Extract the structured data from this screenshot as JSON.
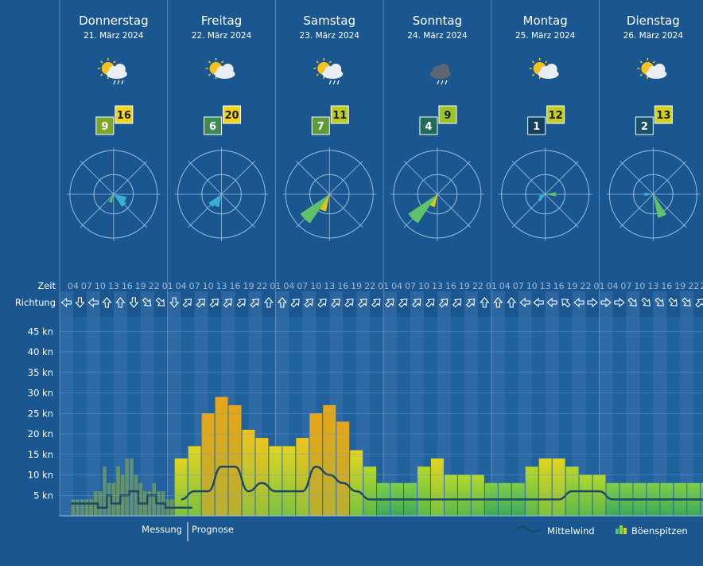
{
  "days": [
    {
      "name": "Donnerstag",
      "date": "21. März 2024",
      "weather_icon": "sun-cloud-rain-icon",
      "mean_wind": 9,
      "gust": 16,
      "mean_badge_color": "#7aa62c",
      "gust_badge_color": "#f4d51e"
    },
    {
      "name": "Freitag",
      "date": "22. März 2024",
      "weather_icon": "sun-cloud-icon",
      "mean_wind": 6,
      "gust": 20,
      "mean_badge_color": "#3d8a52",
      "gust_badge_color": "#f4d51e"
    },
    {
      "name": "Samstag",
      "date": "23. März 2024",
      "weather_icon": "sun-cloud-rain-icon",
      "mean_wind": 7,
      "gust": 11,
      "mean_badge_color": "#5d9a3c",
      "gust_badge_color": "#bccc20"
    },
    {
      "name": "Sonntag",
      "date": "24. März 2024",
      "weather_icon": "cloud-rain-icon",
      "mean_wind": 4,
      "gust": 9,
      "mean_badge_color": "#226b5a",
      "gust_badge_color": "#9cc42a"
    },
    {
      "name": "Montag",
      "date": "25. März 2024",
      "weather_icon": "sun-cloud-icon",
      "mean_wind": 1,
      "gust": 12,
      "mean_badge_color": "#13405f",
      "gust_badge_color": "#c4ce20"
    },
    {
      "name": "Dienstag",
      "date": "26. März 2024",
      "weather_icon": "sun-cloud-icon",
      "mean_wind": 2,
      "gust": 13,
      "mean_badge_color": "#1b5169",
      "gust_badge_color": "#d2d21e"
    }
  ],
  "row_labels": {
    "time": "Zeit",
    "direction": "Richtung"
  },
  "hour_ticks": [
    "01",
    "04",
    "07",
    "10",
    "13",
    "16",
    "19",
    "22"
  ],
  "y_axis": {
    "unit": "kn",
    "ticks": [
      5,
      10,
      15,
      20,
      25,
      30,
      35,
      40,
      45
    ]
  },
  "footer": {
    "measurement": "Messung",
    "forecast": "Prognose"
  },
  "legend": {
    "mean": "Mittelwind",
    "gust": "Böenspitzen"
  },
  "colors": {
    "background": "#1a5791",
    "mean_line": "#1d4a63",
    "band": "#4d7fb3"
  },
  "chart_data": {
    "type": "bar",
    "title": "",
    "xlabel": "",
    "ylabel": "",
    "ylim": [
      0,
      48
    ],
    "x_hours": [
      4,
      7,
      10,
      13,
      16,
      19,
      22,
      25,
      28,
      31,
      34,
      37,
      40,
      43,
      46,
      49,
      52,
      55,
      58,
      61,
      64,
      67,
      70,
      73,
      76,
      79,
      82,
      85,
      88,
      91,
      94,
      97,
      100,
      103,
      106,
      109,
      112,
      115,
      118,
      121,
      124,
      127,
      130,
      133,
      136,
      139,
      142,
      145
    ],
    "measurement": {
      "x_hours": [
        4,
        5,
        6,
        7,
        8,
        9,
        10,
        11,
        12,
        13,
        14,
        15,
        16,
        17,
        18,
        19,
        20,
        21,
        22,
        23,
        24,
        25,
        26,
        27,
        28,
        29,
        30
      ],
      "gusts": [
        4,
        4,
        4,
        4,
        4,
        6,
        6,
        12,
        8,
        8,
        12,
        10,
        14,
        14,
        10,
        8,
        6,
        6,
        8,
        6,
        6,
        4,
        4,
        4,
        4,
        4,
        4
      ],
      "mean": [
        3,
        3,
        3,
        3,
        3,
        3,
        2,
        2,
        5,
        3,
        3,
        5,
        5,
        6,
        6,
        3,
        3,
        5,
        5,
        3,
        3,
        2,
        2,
        2,
        2,
        2,
        2
      ]
    },
    "series": [
      {
        "name": "Böenspitzen",
        "values": [
          4,
          6,
          10,
          10,
          8,
          8,
          8,
          10,
          14,
          17,
          25,
          29,
          27,
          21,
          19,
          17,
          17,
          19,
          25,
          27,
          23,
          16,
          12,
          8,
          8,
          8,
          12,
          14,
          10,
          10,
          10,
          8,
          8,
          8,
          12,
          14,
          14,
          12,
          10,
          10,
          8,
          8,
          8,
          8,
          8,
          8,
          8,
          8
        ]
      },
      {
        "name": "Mittelwind",
        "values": [
          2,
          2,
          4,
          4,
          4,
          4,
          4,
          2,
          4,
          6,
          6,
          12,
          12,
          6,
          8,
          6,
          6,
          6,
          12,
          10,
          8,
          6,
          4,
          4,
          4,
          4,
          4,
          4,
          4,
          4,
          4,
          4,
          4,
          4,
          4,
          4,
          4,
          6,
          6,
          6,
          4,
          4,
          4,
          4,
          4,
          4,
          4,
          4
        ]
      }
    ],
    "directions": [
      [
        "W",
        "S",
        "W",
        "N",
        "N",
        "S",
        "SE",
        "SE"
      ],
      [
        "S",
        "NE",
        "NE",
        "NE",
        "NE",
        "NE",
        "NE",
        "N"
      ],
      [
        "N",
        "NE",
        "NE",
        "NE",
        "NE",
        "NE",
        "NE",
        "NE"
      ],
      [
        "NE",
        "NE",
        "NE",
        "NE",
        "NE",
        "NE",
        "NE",
        "N"
      ],
      [
        "N",
        "N",
        "W",
        "W",
        "W",
        "NW",
        "W",
        "E"
      ],
      [
        "E",
        "E",
        "SE",
        "SE",
        "SE",
        "SE",
        "SE",
        "NE"
      ]
    ],
    "wind_rose": [
      [
        {
          "dir": "ESE",
          "len": 0.3,
          "c": "#3ab0d8"
        },
        {
          "dir": "SE",
          "len": 0.35,
          "c": "#3ab0d8"
        },
        {
          "dir": "SSW",
          "len": 0.2,
          "c": "#5ec26a"
        }
      ],
      [
        {
          "dir": "SW",
          "len": 0.35,
          "c": "#3ab0d8"
        },
        {
          "dir": "SSW",
          "len": 0.3,
          "c": "#3ab0d8"
        }
      ],
      [
        {
          "dir": "SW",
          "len": 0.8,
          "c": "#5ec26a"
        },
        {
          "dir": "SSW",
          "len": 0.4,
          "c": "#e6c415"
        }
      ],
      [
        {
          "dir": "SW",
          "len": 0.8,
          "c": "#5ec26a"
        },
        {
          "dir": "SSW",
          "len": 0.3,
          "c": "#e6c415"
        }
      ],
      [
        {
          "dir": "E",
          "len": 0.25,
          "c": "#5ec26a"
        },
        {
          "dir": "SW",
          "len": 0.2,
          "c": "#3ab0d8"
        },
        {
          "dir": "WSW",
          "len": 0.15,
          "c": "#3ab0d8"
        }
      ],
      [
        {
          "dir": "SSE",
          "len": 0.55,
          "c": "#5ec26a"
        },
        {
          "dir": "W",
          "len": 0.2,
          "c": "#3ab0d8"
        }
      ]
    ]
  }
}
